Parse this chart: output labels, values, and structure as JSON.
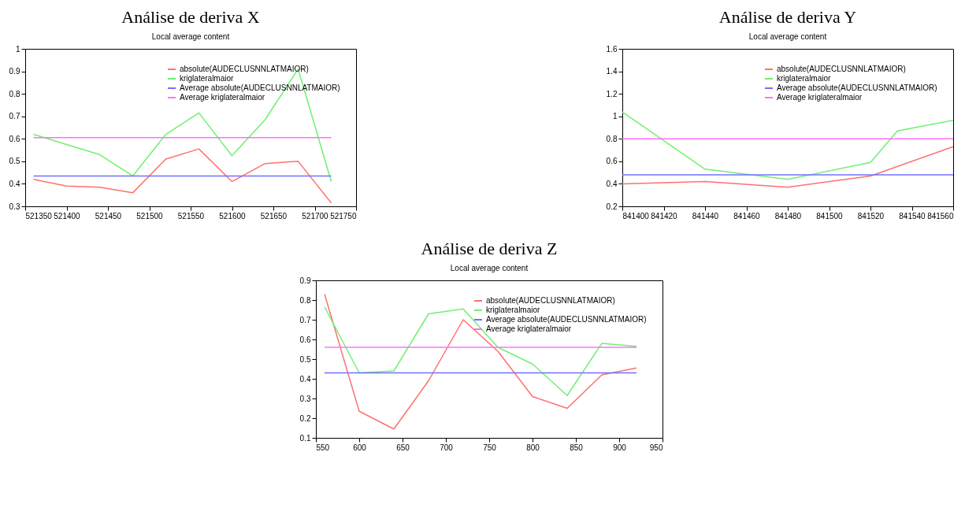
{
  "chart_data": [
    {
      "type": "line",
      "title": "Análise  de deriva X",
      "subtitle": "Local average content",
      "x": [
        521360,
        521400,
        521440,
        521480,
        521520,
        521560,
        521600,
        521640,
        521680,
        521720
      ],
      "xlim": [
        521350,
        521750
      ],
      "xticks": [
        521350,
        521400,
        521450,
        521500,
        521550,
        521600,
        521650,
        521700,
        521750
      ],
      "ylim": [
        0.3,
        1
      ],
      "yticks": [
        0.3,
        0.4,
        0.5,
        0.6,
        0.7,
        0.8,
        0.9,
        1
      ],
      "legend": "top right",
      "series": [
        {
          "name": "absolute(AUDECLUSNNLATMAIOR)",
          "color": "#ff7070",
          "values": [
            0.42,
            0.39,
            0.385,
            0.36,
            0.51,
            0.555,
            0.41,
            0.49,
            0.5,
            0.315
          ]
        },
        {
          "name": "kriglateralmaior",
          "color": "#70f070",
          "values": [
            0.62,
            0.575,
            0.53,
            0.435,
            0.62,
            0.715,
            0.525,
            0.685,
            0.91,
            0.41
          ]
        },
        {
          "name": "Average absolute(AUDECLUSNNLATMAIOR)",
          "color": "#7070ff",
          "x": [
            521360,
            521720
          ],
          "values": [
            0.435,
            0.435
          ]
        },
        {
          "name": "Average kriglateralmaior",
          "color": "#ff70ff",
          "x": [
            521360,
            521720
          ],
          "values": [
            0.605,
            0.605
          ]
        }
      ]
    },
    {
      "type": "line",
      "title": "Análise  de deriva Y",
      "subtitle": "Local average content",
      "x": [
        841400,
        841440,
        841480,
        841520,
        841560
      ],
      "xlim": [
        841400,
        841560
      ],
      "xticks": [
        841400,
        841420,
        841440,
        841460,
        841480,
        841500,
        841520,
        841540,
        841560
      ],
      "ylim": [
        0.2,
        1.6
      ],
      "yticks": [
        0.2,
        0.4,
        0.6,
        0.8,
        1,
        1.2,
        1.4,
        1.6
      ],
      "legend": "top right",
      "series": [
        {
          "name": "absolute(AUDECLUSNNLATMAIOR)",
          "color": "#ff7070",
          "values": [
            0.4,
            0.42,
            0.37,
            0.47,
            0.73
          ]
        },
        {
          "name": "kriglateralmaior",
          "color": "#70f070",
          "x": [
            841400,
            841440,
            841480,
            841520,
            841533,
            841560
          ],
          "values": [
            1.04,
            0.53,
            0.44,
            0.59,
            0.87,
            0.965
          ]
        },
        {
          "name": "Average absolute(AUDECLUSNNLATMAIOR)",
          "color": "#7070ff",
          "x": [
            841400,
            841560
          ],
          "values": [
            0.48,
            0.48
          ]
        },
        {
          "name": "Average kriglateralmaior",
          "color": "#ff70ff",
          "x": [
            841400,
            841560
          ],
          "values": [
            0.8,
            0.8
          ]
        }
      ]
    },
    {
      "type": "line",
      "title": "Análise  de deriva Z",
      "subtitle": "Local average content",
      "x": [
        560,
        600,
        640,
        680,
        720,
        760,
        800,
        840,
        880,
        920
      ],
      "xlim": [
        550,
        950
      ],
      "xticks": [
        550,
        600,
        650,
        700,
        750,
        800,
        850,
        900,
        950
      ],
      "ylim": [
        0.1,
        0.9
      ],
      "yticks": [
        0.1,
        0.2,
        0.3,
        0.4,
        0.5,
        0.6,
        0.7,
        0.8,
        0.9
      ],
      "legend": "top right",
      "series": [
        {
          "name": "absolute(AUDECLUSNNLATMAIOR)",
          "color": "#ff7070",
          "values": [
            0.83,
            0.235,
            0.145,
            0.39,
            0.7,
            0.54,
            0.31,
            0.25,
            0.42,
            0.455
          ]
        },
        {
          "name": "kriglateralmaior",
          "color": "#70f070",
          "values": [
            0.765,
            0.43,
            0.44,
            0.73,
            0.755,
            0.56,
            0.475,
            0.315,
            0.58,
            0.565
          ]
        },
        {
          "name": "Average absolute(AUDECLUSNNLATMAIOR)",
          "color": "#7070ff",
          "x": [
            560,
            920
          ],
          "values": [
            0.43,
            0.43
          ]
        },
        {
          "name": "Average kriglateralmaior",
          "color": "#ff70ff",
          "x": [
            560,
            920
          ],
          "values": [
            0.56,
            0.56
          ]
        }
      ]
    }
  ]
}
